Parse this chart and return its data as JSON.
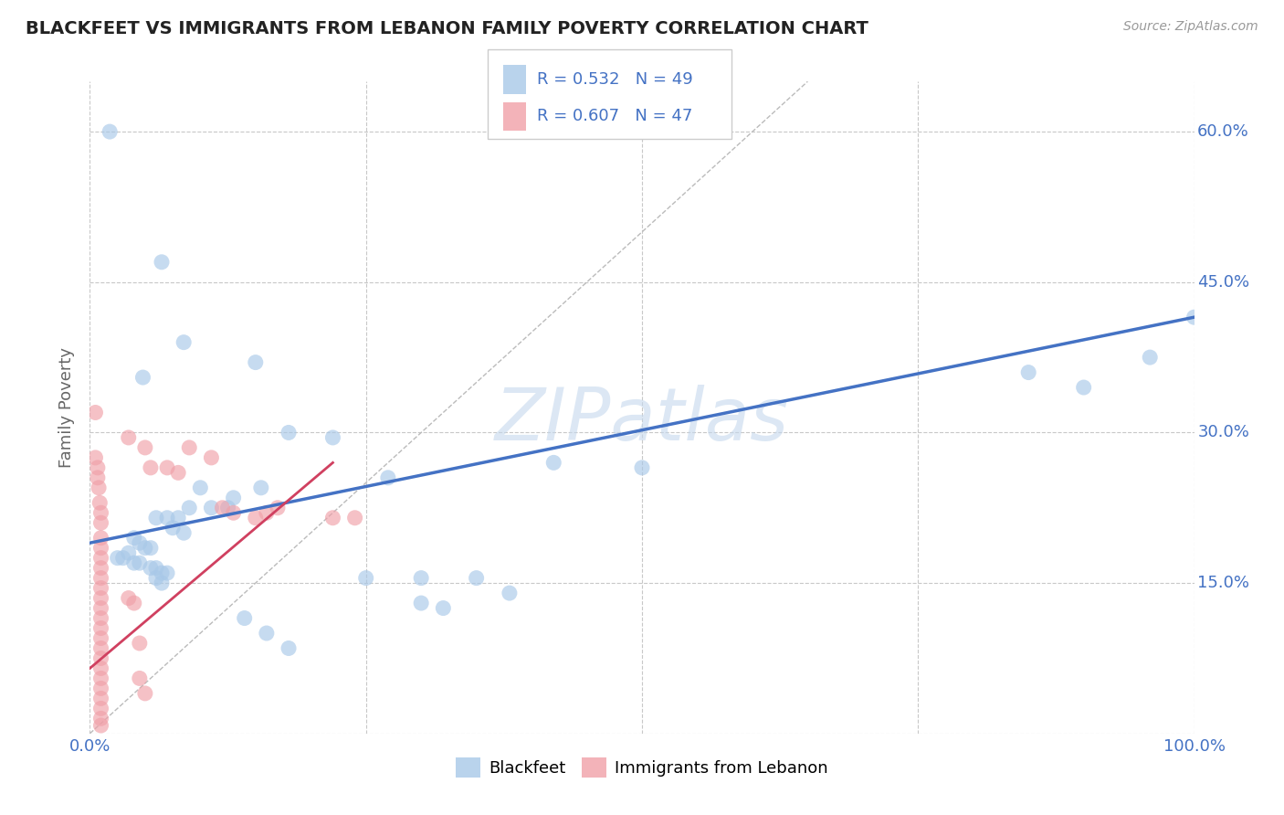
{
  "title": "BLACKFEET VS IMMIGRANTS FROM LEBANON FAMILY POVERTY CORRELATION CHART",
  "source": "Source: ZipAtlas.com",
  "ylabel": "Family Poverty",
  "xlim": [
    0.0,
    1.0
  ],
  "ylim": [
    0.0,
    0.65
  ],
  "xticks": [
    0.0,
    0.25,
    0.5,
    0.75,
    1.0
  ],
  "xtick_labels": [
    "0.0%",
    "",
    "",
    "",
    "100.0%"
  ],
  "ytick_positions": [
    0.0,
    0.15,
    0.3,
    0.45,
    0.6
  ],
  "ytick_labels_right": [
    "",
    "15.0%",
    "30.0%",
    "45.0%",
    "60.0%"
  ],
  "background_color": "#ffffff",
  "grid_color": "#c8c8c8",
  "legend_r1": "R = 0.532",
  "legend_n1": "N = 49",
  "legend_r2": "R = 0.607",
  "legend_n2": "N = 47",
  "blue_color": "#a8c8e8",
  "pink_color": "#f0a0a8",
  "line_blue": "#4472c4",
  "line_pink": "#d04060",
  "label_blue": "Blackfeet",
  "label_pink": "Immigrants from Lebanon",
  "title_color": "#222222",
  "axis_label_color": "#666666",
  "tick_label_color": "#4472c4",
  "blue_scatter": [
    [
      0.018,
      0.6
    ],
    [
      0.065,
      0.47
    ],
    [
      0.085,
      0.39
    ],
    [
      0.048,
      0.355
    ],
    [
      0.15,
      0.37
    ],
    [
      0.18,
      0.3
    ],
    [
      0.22,
      0.295
    ],
    [
      0.27,
      0.255
    ],
    [
      0.42,
      0.27
    ],
    [
      0.5,
      0.265
    ],
    [
      0.1,
      0.245
    ],
    [
      0.13,
      0.235
    ],
    [
      0.155,
      0.245
    ],
    [
      0.09,
      0.225
    ],
    [
      0.11,
      0.225
    ],
    [
      0.125,
      0.225
    ],
    [
      0.06,
      0.215
    ],
    [
      0.07,
      0.215
    ],
    [
      0.08,
      0.215
    ],
    [
      0.075,
      0.205
    ],
    [
      0.085,
      0.2
    ],
    [
      0.04,
      0.195
    ],
    [
      0.045,
      0.19
    ],
    [
      0.05,
      0.185
    ],
    [
      0.055,
      0.185
    ],
    [
      0.035,
      0.18
    ],
    [
      0.025,
      0.175
    ],
    [
      0.03,
      0.175
    ],
    [
      0.04,
      0.17
    ],
    [
      0.045,
      0.17
    ],
    [
      0.055,
      0.165
    ],
    [
      0.06,
      0.165
    ],
    [
      0.07,
      0.16
    ],
    [
      0.065,
      0.16
    ],
    [
      0.06,
      0.155
    ],
    [
      0.065,
      0.15
    ],
    [
      0.25,
      0.155
    ],
    [
      0.3,
      0.155
    ],
    [
      0.35,
      0.155
    ],
    [
      0.38,
      0.14
    ],
    [
      0.3,
      0.13
    ],
    [
      0.32,
      0.125
    ],
    [
      0.14,
      0.115
    ],
    [
      0.16,
      0.1
    ],
    [
      0.18,
      0.085
    ],
    [
      0.85,
      0.36
    ],
    [
      0.9,
      0.345
    ],
    [
      0.96,
      0.375
    ],
    [
      1.0,
      0.415
    ]
  ],
  "pink_scatter": [
    [
      0.005,
      0.32
    ],
    [
      0.005,
      0.275
    ],
    [
      0.007,
      0.265
    ],
    [
      0.007,
      0.255
    ],
    [
      0.008,
      0.245
    ],
    [
      0.009,
      0.23
    ],
    [
      0.01,
      0.22
    ],
    [
      0.01,
      0.21
    ],
    [
      0.01,
      0.195
    ],
    [
      0.01,
      0.185
    ],
    [
      0.01,
      0.175
    ],
    [
      0.01,
      0.165
    ],
    [
      0.01,
      0.155
    ],
    [
      0.01,
      0.145
    ],
    [
      0.01,
      0.135
    ],
    [
      0.01,
      0.125
    ],
    [
      0.01,
      0.115
    ],
    [
      0.01,
      0.105
    ],
    [
      0.01,
      0.095
    ],
    [
      0.01,
      0.085
    ],
    [
      0.01,
      0.075
    ],
    [
      0.01,
      0.065
    ],
    [
      0.01,
      0.055
    ],
    [
      0.01,
      0.045
    ],
    [
      0.01,
      0.035
    ],
    [
      0.01,
      0.025
    ],
    [
      0.01,
      0.015
    ],
    [
      0.01,
      0.008
    ],
    [
      0.035,
      0.295
    ],
    [
      0.05,
      0.285
    ],
    [
      0.055,
      0.265
    ],
    [
      0.07,
      0.265
    ],
    [
      0.08,
      0.26
    ],
    [
      0.09,
      0.285
    ],
    [
      0.11,
      0.275
    ],
    [
      0.12,
      0.225
    ],
    [
      0.13,
      0.22
    ],
    [
      0.15,
      0.215
    ],
    [
      0.16,
      0.22
    ],
    [
      0.17,
      0.225
    ],
    [
      0.22,
      0.215
    ],
    [
      0.24,
      0.215
    ],
    [
      0.035,
      0.135
    ],
    [
      0.04,
      0.13
    ],
    [
      0.045,
      0.09
    ],
    [
      0.045,
      0.055
    ],
    [
      0.05,
      0.04
    ]
  ],
  "blue_trendline": [
    [
      0.0,
      0.19
    ],
    [
      1.0,
      0.415
    ]
  ],
  "pink_trendline": [
    [
      0.0,
      0.065
    ],
    [
      0.22,
      0.27
    ]
  ],
  "diagonal_line": [
    [
      0.0,
      0.0
    ],
    [
      0.65,
      0.65
    ]
  ]
}
